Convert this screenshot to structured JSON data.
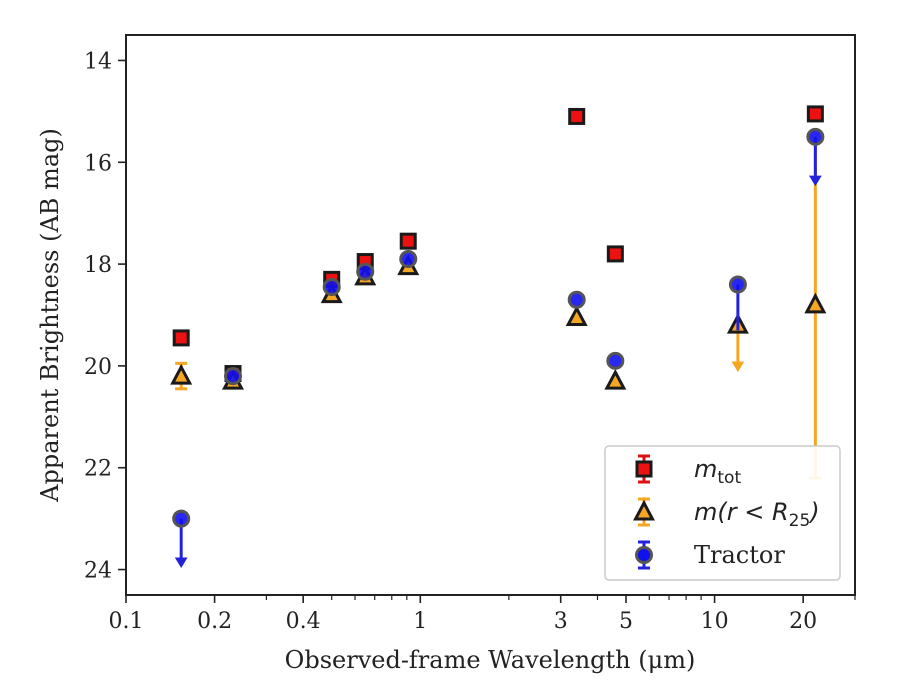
{
  "chart_data": {
    "type": "scatter",
    "xscale": "log",
    "yinverted": true,
    "xlim": [
      0.1,
      30
    ],
    "ylim": [
      24.5,
      13.5
    ],
    "xlabel": "Observed-frame Wavelength (μm)",
    "ylabel": "Apparent Brightness (AB mag)",
    "xticks": [
      {
        "value": 0.1,
        "label": "0.1"
      },
      {
        "value": 0.2,
        "label": "0.2"
      },
      {
        "value": 0.4,
        "label": "0.4"
      },
      {
        "value": 1,
        "label": "1"
      },
      {
        "value": 3,
        "label": "3"
      },
      {
        "value": 5,
        "label": "5"
      },
      {
        "value": 10,
        "label": "10"
      },
      {
        "value": 20,
        "label": "20"
      }
    ],
    "yticks": [
      {
        "value": 14,
        "label": "14"
      },
      {
        "value": 16,
        "label": "16"
      },
      {
        "value": 18,
        "label": "18"
      },
      {
        "value": 20,
        "label": "20"
      },
      {
        "value": 22,
        "label": "22"
      },
      {
        "value": 24,
        "label": "24"
      }
    ],
    "legend_position": "lower right",
    "series": [
      {
        "name": "m_tot",
        "legend_label": {
          "main": "m",
          "sub": "tot"
        },
        "marker": "square",
        "face_color": "#ee1111",
        "edge_color": "#1a1a1a",
        "errbar_color": "#dd1111",
        "points": [
          {
            "x": 0.154,
            "y": 19.45
          },
          {
            "x": 0.231,
            "y": 20.15
          },
          {
            "x": 0.5,
            "y": 18.3
          },
          {
            "x": 0.65,
            "y": 17.95
          },
          {
            "x": 0.91,
            "y": 17.55
          },
          {
            "x": 3.4,
            "y": 15.1
          },
          {
            "x": 4.6,
            "y": 17.8
          },
          {
            "x": 22,
            "y": 15.05
          }
        ]
      },
      {
        "name": "m(r < R_25)",
        "legend_label": {
          "main": "m(r < R",
          "sub": "25",
          "tail": ")"
        },
        "marker": "triangle",
        "face_color": "#f5a623",
        "edge_color": "#1a1a1a",
        "errbar_color": "#f5a623",
        "points": [
          {
            "x": 0.154,
            "y": 20.2,
            "yerr": 0.25
          },
          {
            "x": 0.231,
            "y": 20.3
          },
          {
            "x": 0.5,
            "y": 18.6
          },
          {
            "x": 0.65,
            "y": 18.25
          },
          {
            "x": 0.91,
            "y": 18.05
          },
          {
            "x": 3.4,
            "y": 19.05
          },
          {
            "x": 4.6,
            "y": 20.3
          },
          {
            "x": 12,
            "y": 19.2,
            "upper_limit_to": 20.1
          },
          {
            "x": 22,
            "y": 18.8,
            "yerr_range": [
              15.6,
              22.2
            ]
          }
        ]
      },
      {
        "name": "Tractor",
        "legend_label": {
          "main": "Tractor"
        },
        "marker": "circle",
        "face_color": "#1111ee",
        "edge_color": "#555555",
        "errbar_color": "#2222dd",
        "points": [
          {
            "x": 0.154,
            "y": 23.0,
            "upper_limit_to": 23.95
          },
          {
            "x": 0.231,
            "y": 20.2
          },
          {
            "x": 0.5,
            "y": 18.45
          },
          {
            "x": 0.65,
            "y": 18.15
          },
          {
            "x": 0.91,
            "y": 17.9
          },
          {
            "x": 3.4,
            "y": 18.7
          },
          {
            "x": 4.6,
            "y": 19.9
          },
          {
            "x": 12,
            "y": 18.4,
            "lower_limit_from": 19.3
          },
          {
            "x": 22,
            "y": 15.5,
            "upper_limit_to": 16.45
          }
        ]
      }
    ]
  }
}
